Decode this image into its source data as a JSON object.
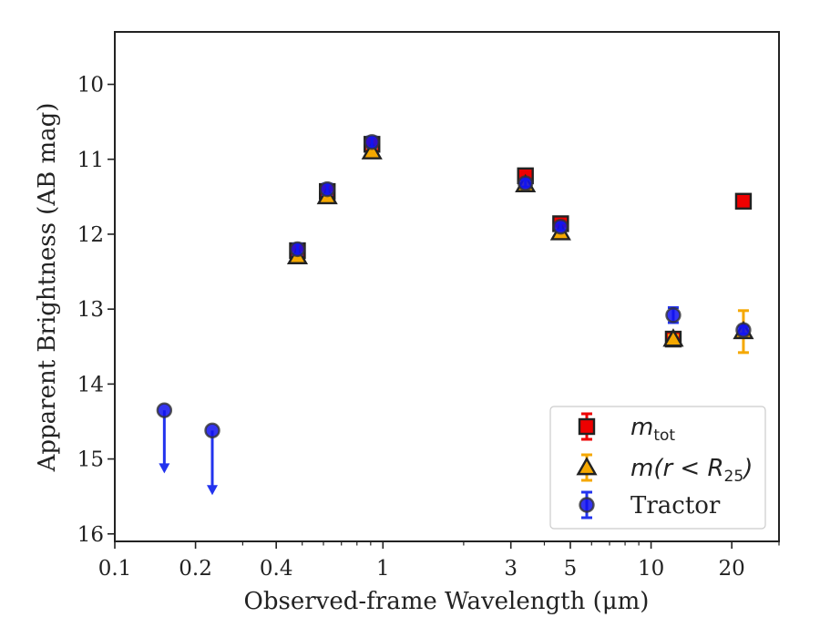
{
  "chart_data": {
    "type": "scatter",
    "xlabel": "Observed-frame Wavelength (μm)",
    "ylabel": "Apparent Brightness (AB mag)",
    "xscale": "log",
    "xlim": [
      0.1,
      30
    ],
    "ylim": [
      16.1,
      9.3
    ],
    "y_inverted": true,
    "grid": false,
    "legend_position": "lower-right",
    "x_ticks": [
      {
        "value": 0.1,
        "label": "0.1"
      },
      {
        "value": 0.2,
        "label": "0.2"
      },
      {
        "value": 0.4,
        "label": "0.4"
      },
      {
        "value": 1,
        "label": "1"
      },
      {
        "value": 3,
        "label": "3"
      },
      {
        "value": 5,
        "label": "5"
      },
      {
        "value": 10,
        "label": "10"
      },
      {
        "value": 20,
        "label": "20"
      }
    ],
    "y_ticks": [
      {
        "value": 10,
        "label": "10"
      },
      {
        "value": 11,
        "label": "11"
      },
      {
        "value": 12,
        "label": "12"
      },
      {
        "value": 13,
        "label": "13"
      },
      {
        "value": 14,
        "label": "14"
      },
      {
        "value": 15,
        "label": "15"
      },
      {
        "value": 16,
        "label": "16"
      }
    ],
    "series": [
      {
        "name": "m_tot",
        "legend_math": "m",
        "legend_sub": "tot",
        "marker": "square",
        "color": "#ee0000",
        "errcolor": "#ee0000",
        "points": [
          {
            "x": 0.48,
            "y": 12.22,
            "err": 0.05
          },
          {
            "x": 0.62,
            "y": 11.43,
            "err": 0.05
          },
          {
            "x": 0.91,
            "y": 10.8,
            "err": 0.05
          },
          {
            "x": 3.4,
            "y": 11.22,
            "err": 0.05
          },
          {
            "x": 4.6,
            "y": 11.86,
            "err": 0.05
          },
          {
            "x": 12.1,
            "y": 13.4,
            "err": 0.05
          },
          {
            "x": 22.1,
            "y": 11.56,
            "err": 0.05
          }
        ]
      },
      {
        "name": "m(r<R_25)",
        "legend_math": "m(r < R",
        "legend_sub": "25",
        "legend_close": ")",
        "marker": "triangle",
        "color": "#f5a800",
        "errcolor": "#f5a800",
        "points": [
          {
            "x": 0.48,
            "y": 12.3,
            "err": 0.05
          },
          {
            "x": 0.62,
            "y": 11.5,
            "err": 0.05
          },
          {
            "x": 0.91,
            "y": 10.9,
            "err": 0.05
          },
          {
            "x": 3.4,
            "y": 11.34,
            "err": 0.05
          },
          {
            "x": 4.6,
            "y": 11.98,
            "err": 0.05
          },
          {
            "x": 12.1,
            "y": 13.4,
            "err": 0.05
          },
          {
            "x": 22.1,
            "y": 13.3,
            "err": 0.28
          }
        ]
      },
      {
        "name": "Tractor",
        "marker": "circle",
        "color": "#1111ee",
        "errcolor": "#2233ee",
        "points": [
          {
            "x": 0.48,
            "y": 12.2,
            "err": 0.07
          },
          {
            "x": 0.62,
            "y": 11.4,
            "err": 0.07
          },
          {
            "x": 0.91,
            "y": 10.77,
            "err": 0.07
          },
          {
            "x": 3.4,
            "y": 11.32,
            "err": 0.05
          },
          {
            "x": 4.6,
            "y": 11.9,
            "err": 0.05
          },
          {
            "x": 12.1,
            "y": 13.08,
            "err": 0.1
          },
          {
            "x": 22.1,
            "y": 13.28,
            "err": 0.05
          }
        ],
        "upper_limits": [
          {
            "x": 0.153,
            "y": 14.35,
            "arrow_to": 15.18
          },
          {
            "x": 0.231,
            "y": 14.62,
            "arrow_to": 15.47
          }
        ]
      }
    ]
  }
}
